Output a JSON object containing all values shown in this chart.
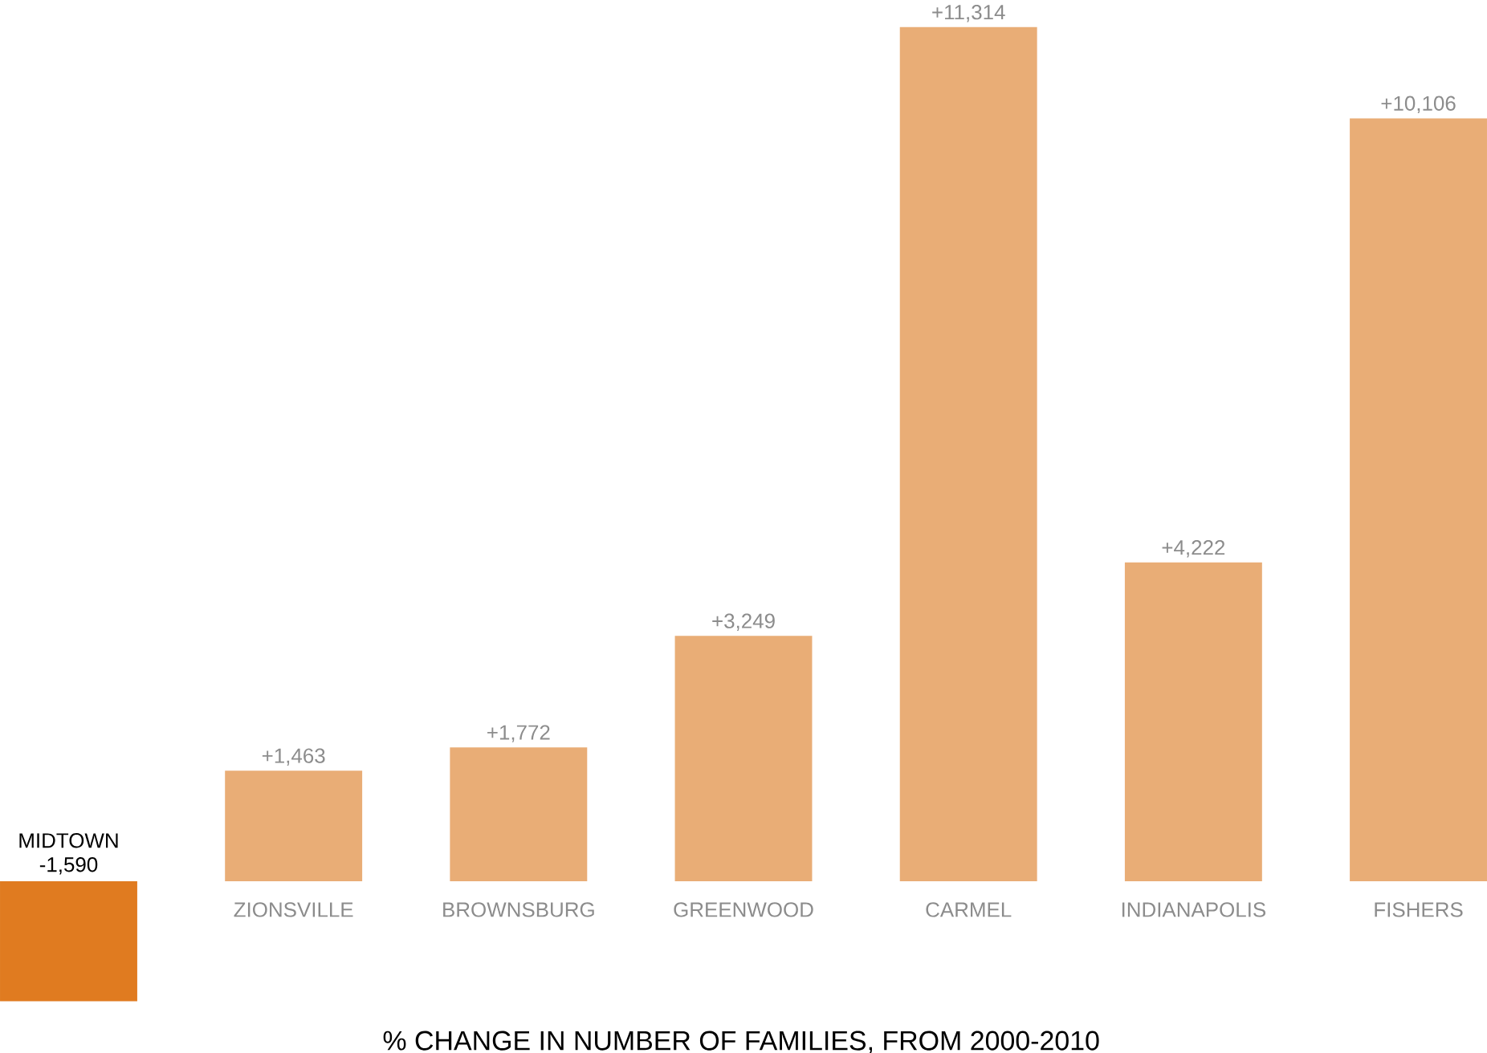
{
  "chart_data": {
    "type": "bar",
    "xlabel": "% CHANGE IN NUMBER OF FAMILIES, FROM 2000-2010",
    "categories": [
      "MIDTOWN",
      "ZIONSVILLE",
      "BROWNSBURG",
      "GREENWOOD",
      "CARMEL",
      "INDIANAPOLIS",
      "FISHERS"
    ],
    "values": [
      -1590,
      1463,
      1772,
      3249,
      11314,
      4222,
      10106
    ],
    "value_labels": [
      "-1,590",
      "+1,463",
      "+1,772",
      "+3,249",
      "+11,314",
      "+4,222",
      "+10,106"
    ],
    "colors": [
      "#e07b20",
      "#e9ad76",
      "#e9ad76",
      "#e9ad76",
      "#e9ad76",
      "#e9ad76",
      "#e9ad76"
    ]
  }
}
